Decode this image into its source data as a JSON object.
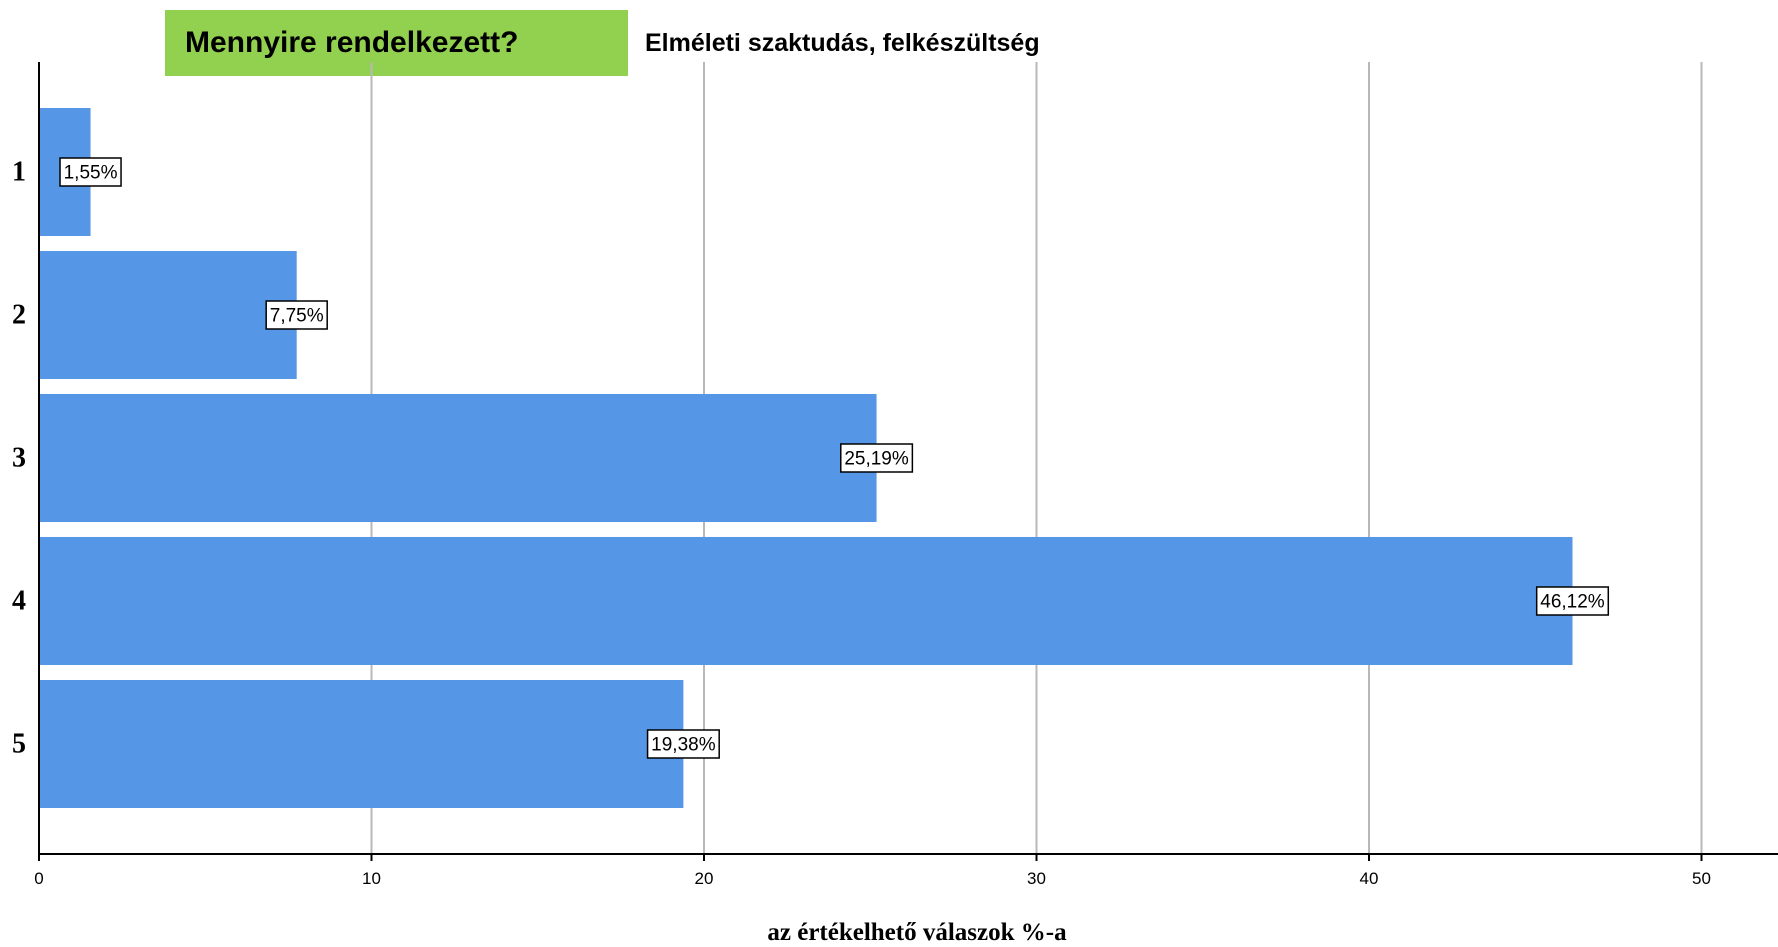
{
  "question_badge": {
    "text": "Mennyire rendelkezett?",
    "color": "#92d050"
  },
  "chart_data": {
    "type": "bar",
    "orientation": "horizontal",
    "title": "Elméleti szaktudás, felkészültség",
    "xlabel": "az értékelhető válaszok %-a",
    "ylabel": "",
    "categories": [
      "1",
      "2",
      "3",
      "4",
      "5"
    ],
    "values": [
      1.55,
      7.75,
      25.19,
      46.12,
      19.38
    ],
    "data_labels": [
      "1,55%",
      "7,75%",
      "25,19%",
      "46,12%",
      "19,38%"
    ],
    "xlim": [
      0,
      52
    ],
    "xticks": [
      0,
      10,
      20,
      30,
      40,
      50
    ],
    "xtick_labels": [
      "0",
      "10",
      "20",
      "30",
      "40",
      "50"
    ],
    "grid": true,
    "bar_color": "#5596e6"
  }
}
